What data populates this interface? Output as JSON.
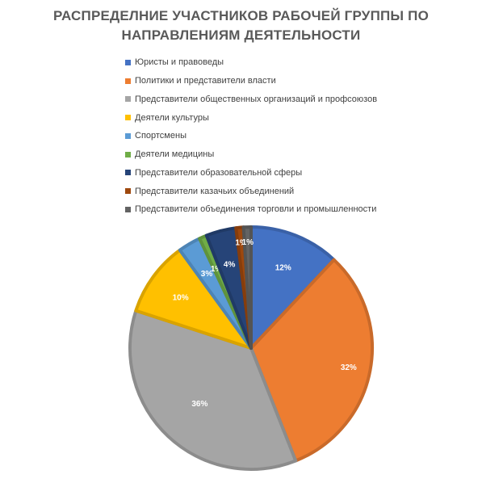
{
  "chart_data": {
    "type": "pie",
    "title_lines": [
      "РАСПРЕДЕЛНИЕ УЧАСТНИКОВ РАБОЧЕЙ ГРУППЫ ПО",
      "НАПРАВЛЕНИЯМ ДЕЯТЕЛЬНОСТИ"
    ],
    "legend_position": "top",
    "slices": [
      {
        "label": "Юристы и правоведы",
        "value": 12,
        "display": "12%",
        "color": "#4472C4"
      },
      {
        "label": "Политики и представители власти",
        "value": 32,
        "display": "32%",
        "color": "#ED7D31"
      },
      {
        "label": "Представители общественных организаций и профсоюзов",
        "value": 36,
        "display": "36%",
        "color": "#A5A5A5"
      },
      {
        "label": "Деятели культуры",
        "value": 10,
        "display": "10%",
        "color": "#FFC000"
      },
      {
        "label": "Спортсмены",
        "value": 3,
        "display": "3%",
        "color": "#5B9BD5"
      },
      {
        "label": "Деятели медицины",
        "value": 1,
        "display": "1%",
        "color": "#70AD47"
      },
      {
        "label": "Представители образовательной сферы",
        "value": 4,
        "display": "4%",
        "color": "#264478"
      },
      {
        "label": "Представители казачьих объединений",
        "value": 1,
        "display": "1%",
        "color": "#9E480E"
      },
      {
        "label": "Представители объединения торговли и промышленности",
        "value": 1,
        "display": "1%",
        "color": "#636363"
      }
    ]
  }
}
